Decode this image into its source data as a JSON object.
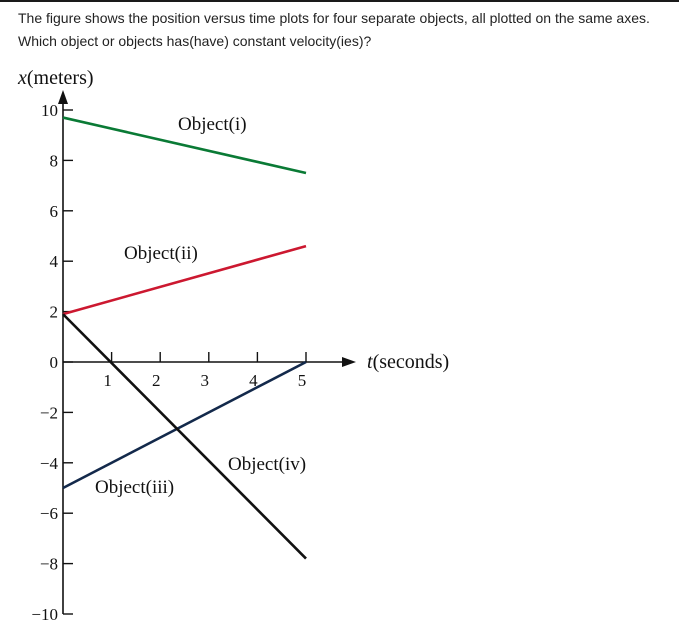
{
  "question": {
    "text": "The figure shows the position versus time plots for four separate objects, all plotted on the same axes. Which object or objects has(have) constant velocity(ies)?"
  },
  "chart_data": {
    "type": "line",
    "ylabel_var": "x",
    "ylabel_unit": "(meters)",
    "xlabel_var": "t",
    "xlabel_unit": "(seconds)",
    "xlim": [
      0,
      5
    ],
    "ylim": [
      -10,
      10
    ],
    "x_ticks": [
      "1",
      "2",
      "3",
      "4",
      "5"
    ],
    "y_ticks": [
      "10",
      "8",
      "6",
      "4",
      "2",
      "0",
      "−2",
      "−4",
      "−6",
      "−8",
      "−10"
    ],
    "grid": false,
    "series": [
      {
        "name": "Object(i)",
        "color": "#0a7a35",
        "x": [
          0,
          5
        ],
        "y": [
          9.7,
          7.5
        ]
      },
      {
        "name": "Object(ii)",
        "color": "#cc1830",
        "x": [
          0,
          5
        ],
        "y": [
          1.9,
          4.6
        ]
      },
      {
        "name": "Object(iii)",
        "color": "#13294b",
        "x": [
          0,
          5
        ],
        "y": [
          -5.0,
          0.0
        ]
      },
      {
        "name": "Object(iv)",
        "color": "#111111",
        "x": [
          0,
          5
        ],
        "y": [
          1.9,
          -7.8
        ]
      }
    ]
  }
}
